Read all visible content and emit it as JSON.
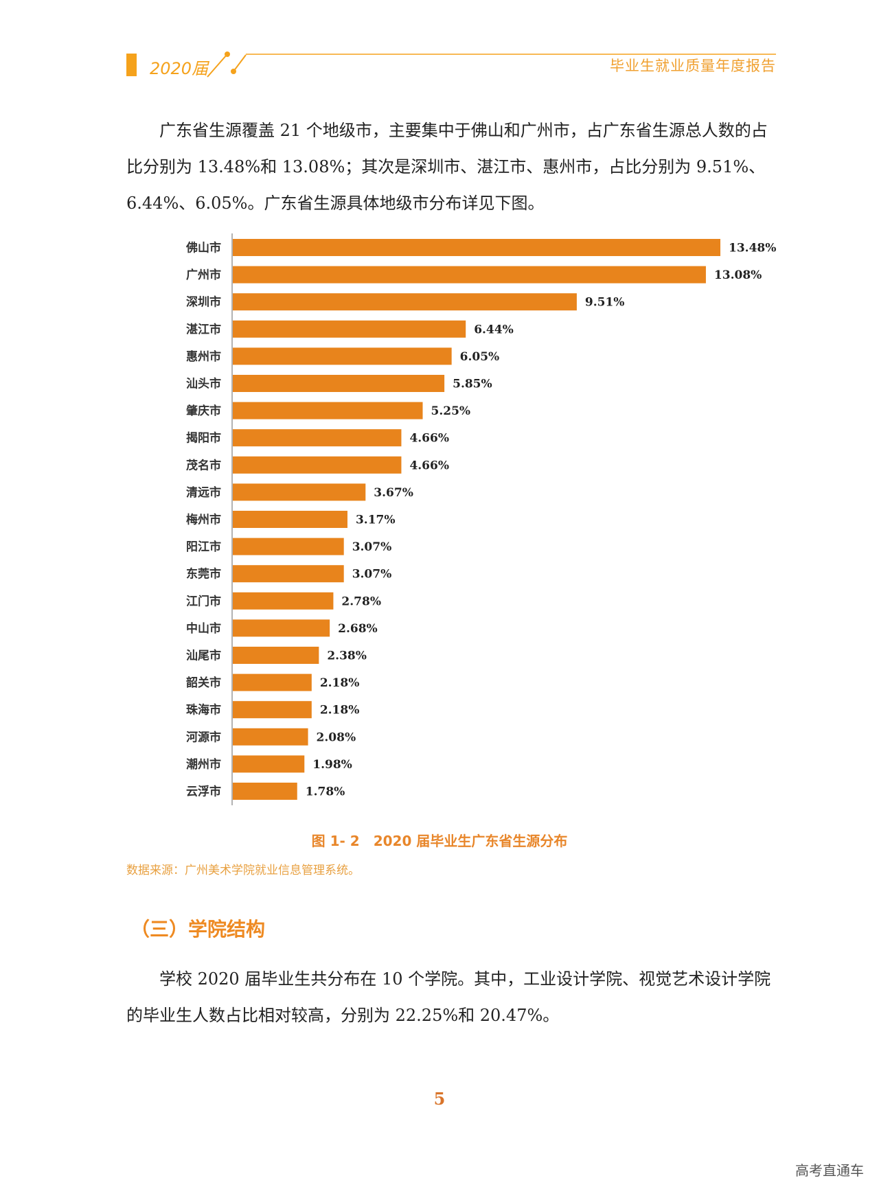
{
  "header": {
    "year_label": "2020届",
    "report_title": "毕业生就业质量年度报告"
  },
  "paragraph1": "广东省生源覆盖 21 个地级市，主要集中于佛山和广州市，占广东省生源总人数的占比分别为 13.48%和 13.08%；其次是深圳市、湛江市、惠州市，占比分别为 9.51%、6.44%、6.05%。广东省生源具体地级市分布详见下图。",
  "chart_data": {
    "type": "bar",
    "orientation": "horizontal",
    "categories": [
      "佛山市",
      "广州市",
      "深圳市",
      "湛江市",
      "惠州市",
      "汕头市",
      "肇庆市",
      "揭阳市",
      "茂名市",
      "清远市",
      "梅州市",
      "阳江市",
      "东莞市",
      "江门市",
      "中山市",
      "汕尾市",
      "韶关市",
      "珠海市",
      "河源市",
      "潮州市",
      "云浮市"
    ],
    "values": [
      13.48,
      13.08,
      9.51,
      6.44,
      6.05,
      5.85,
      5.25,
      4.66,
      4.66,
      3.67,
      3.17,
      3.07,
      3.07,
      2.78,
      2.68,
      2.38,
      2.18,
      2.18,
      2.08,
      1.98,
      1.78
    ],
    "value_labels": [
      "13.48%",
      "13.08%",
      "9.51%",
      "6.44%",
      "6.05%",
      "5.85%",
      "5.25%",
      "4.66%",
      "4.66%",
      "3.67%",
      "3.17%",
      "3.07%",
      "3.07%",
      "2.78%",
      "2.68%",
      "2.38%",
      "2.18%",
      "2.18%",
      "2.08%",
      "1.98%",
      "1.78%"
    ],
    "bar_color": "#e8841c",
    "grid": false
  },
  "caption": "图 1- 2　2020 届毕业生广东省生源分布",
  "source_note": "数据来源：广州美术学院就业信息管理系统。",
  "section_title": "（三）学院结构",
  "paragraph2": "学校 2020 届毕业生共分布在 10 个学院。其中，工业设计学院、视觉艺术设计学院的毕业生人数占比相对较高，分别为 22.25%和 20.47%。",
  "page_number": "5",
  "watermark": "高考直通车",
  "colors": {
    "accent": "#f5a21c",
    "caption": "#e8862a"
  }
}
